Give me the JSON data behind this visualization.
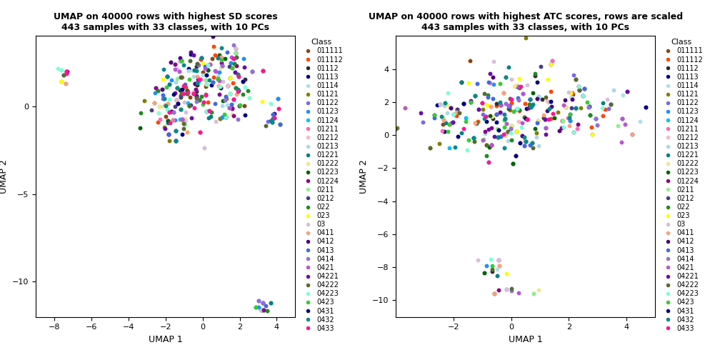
{
  "title1": "UMAP on 40000 rows with highest SD scores\n443 samples with 33 classes, with 10 PCs",
  "title2": "UMAP on 40000 rows with highest ATC scores, rows are scaled\n443 samples with 33 classes, with 10 PCs",
  "xlabel": "UMAP 1",
  "ylabel": "UMAP 2",
  "legend_title": "Class",
  "classes": [
    "011111",
    "011112",
    "01112",
    "01113",
    "01114",
    "01121",
    "01122",
    "01123",
    "01124",
    "01211",
    "01212",
    "01213",
    "01221",
    "01222",
    "01223",
    "01224",
    "0211",
    "0212",
    "022",
    "023",
    "03",
    "0411",
    "0412",
    "0413",
    "0414",
    "0421",
    "04221",
    "04222",
    "04223",
    "0423",
    "0431",
    "0432",
    "0433"
  ],
  "colors": [
    "#8B4513",
    "#FF4500",
    "#2F2F2F",
    "#00008B",
    "#B0E0E6",
    "#808000",
    "#7B68EE",
    "#1E90FF",
    "#00BFFF",
    "#FF69B4",
    "#FFB6C1",
    "#ADD8E6",
    "#008080",
    "#F0E68C",
    "#006400",
    "#8B008B",
    "#90EE90",
    "#483D8B",
    "#228B22",
    "#FFFF00",
    "#D8BFD8",
    "#FFA07A",
    "#4B0082",
    "#4169E1",
    "#9370DB",
    "#BA55D3",
    "#6A0DAD",
    "#556B2F",
    "#7FFFD4",
    "#32CD32",
    "#000080",
    "#008B8B",
    "#FF1493"
  ],
  "plot1_xlim": [
    -9,
    5
  ],
  "plot1_ylim": [
    -12,
    4
  ],
  "plot2_xlim": [
    -4,
    5
  ],
  "plot2_ylim": [
    -11,
    6
  ],
  "plot1_xticks": [
    -8,
    -6,
    -4,
    -2,
    0,
    2,
    4
  ],
  "plot1_yticks": [
    -10,
    -5,
    0
  ],
  "plot2_xticks": [
    -2,
    0,
    2,
    4
  ],
  "plot2_yticks": [
    -10,
    -8,
    -6,
    -4,
    -2,
    0,
    2,
    4
  ],
  "n_points": 443,
  "point_size": 18,
  "figsize": [
    10.08,
    5.04
  ],
  "dpi": 100
}
